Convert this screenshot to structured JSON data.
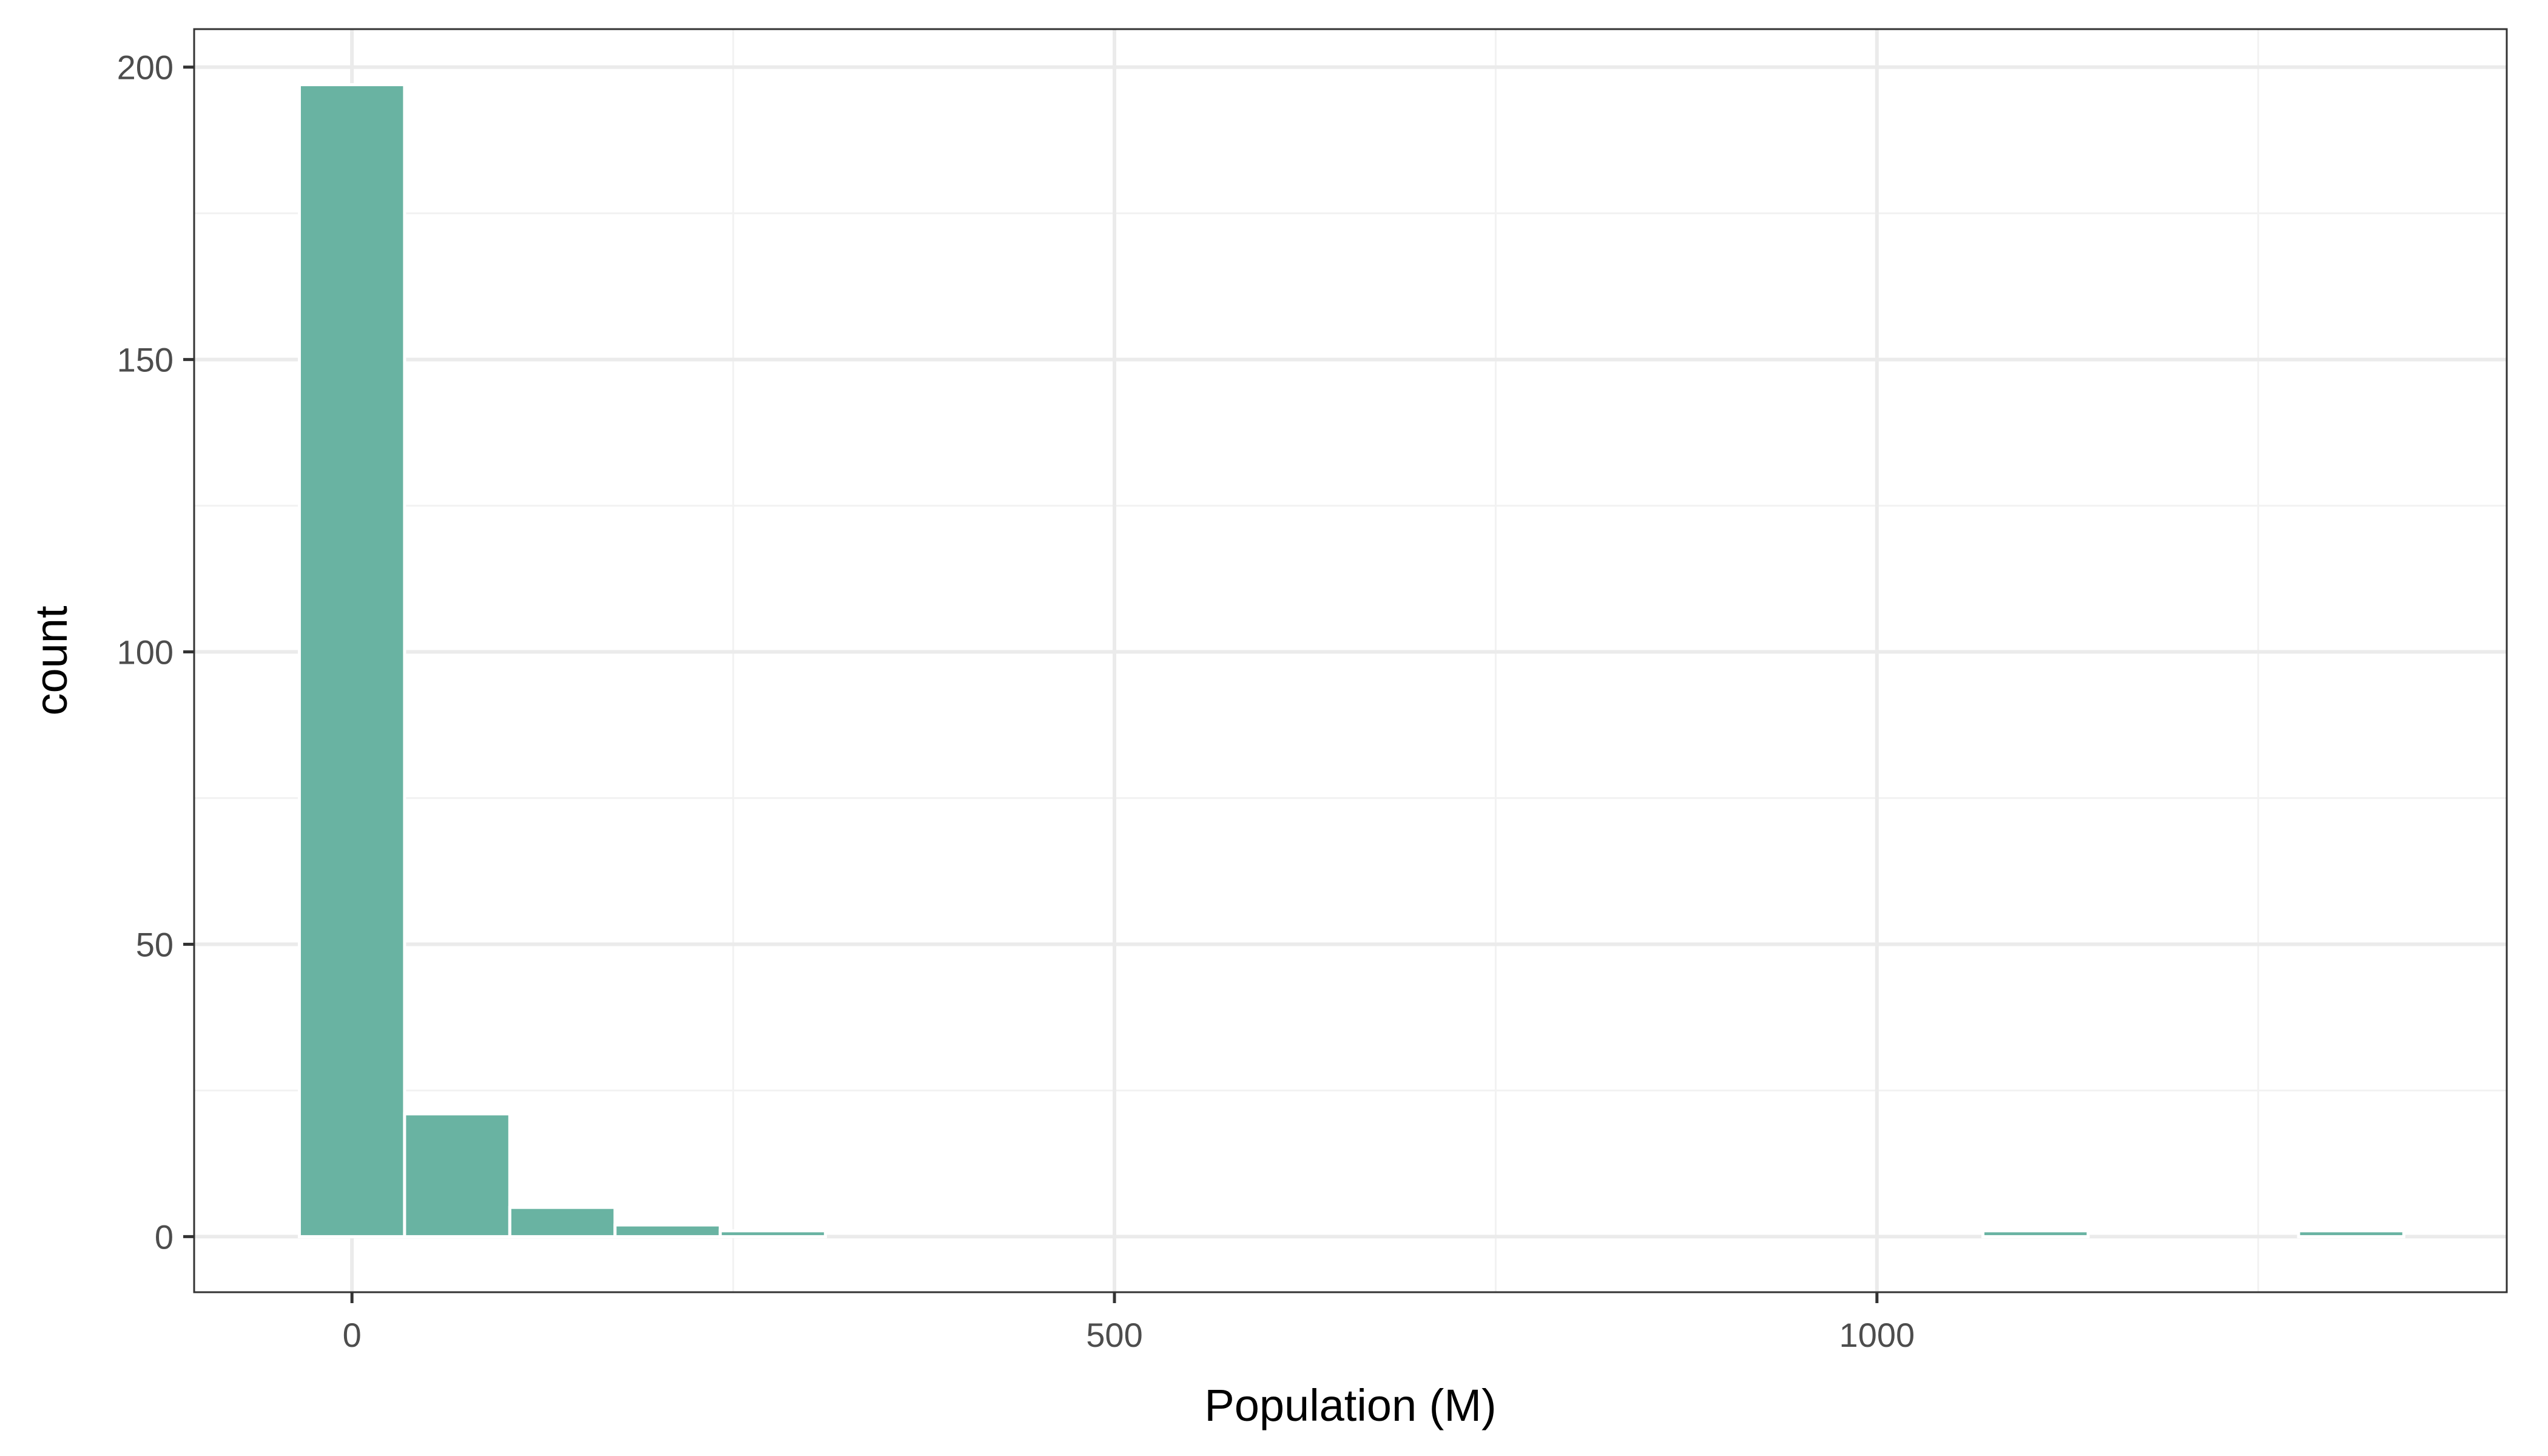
{
  "chart_data": {
    "type": "bar",
    "subtype": "histogram",
    "xlabel": "Population (M)",
    "ylabel": "count",
    "xlim": [
      -103.5,
      1413
    ],
    "ylim": [
      -9.5,
      206.5
    ],
    "x_ticks": [
      {
        "value": 0,
        "label": "0"
      },
      {
        "value": 500,
        "label": "500"
      },
      {
        "value": 1000,
        "label": "1000"
      }
    ],
    "x_minor_ticks": [
      250,
      750,
      1250
    ],
    "y_ticks": [
      {
        "value": 0,
        "label": "0"
      },
      {
        "value": 50,
        "label": "50"
      },
      {
        "value": 100,
        "label": "100"
      },
      {
        "value": 150,
        "label": "150"
      },
      {
        "value": 200,
        "label": "200"
      }
    ],
    "y_minor_ticks": [
      25,
      75,
      125,
      175
    ],
    "bin_width": 69,
    "bins": [
      {
        "x0": -34.5,
        "x1": 34.5,
        "count": 197
      },
      {
        "x0": 34.5,
        "x1": 103.5,
        "count": 21
      },
      {
        "x0": 103.5,
        "x1": 172.5,
        "count": 5
      },
      {
        "x0": 172.5,
        "x1": 241.5,
        "count": 2
      },
      {
        "x0": 241.5,
        "x1": 310.5,
        "count": 1
      },
      {
        "x0": 310.5,
        "x1": 379.5,
        "count": 0
      },
      {
        "x0": 379.5,
        "x1": 448.5,
        "count": 0
      },
      {
        "x0": 448.5,
        "x1": 517.5,
        "count": 0
      },
      {
        "x0": 517.5,
        "x1": 586.5,
        "count": 0
      },
      {
        "x0": 586.5,
        "x1": 655.5,
        "count": 0
      },
      {
        "x0": 655.5,
        "x1": 724.5,
        "count": 0
      },
      {
        "x0": 724.5,
        "x1": 793.5,
        "count": 0
      },
      {
        "x0": 793.5,
        "x1": 862.5,
        "count": 0
      },
      {
        "x0": 862.5,
        "x1": 931.5,
        "count": 0
      },
      {
        "x0": 931.5,
        "x1": 1000.5,
        "count": 0
      },
      {
        "x0": 1000.5,
        "x1": 1069.5,
        "count": 0
      },
      {
        "x0": 1069.5,
        "x1": 1138.5,
        "count": 1
      },
      {
        "x0": 1138.5,
        "x1": 1207.5,
        "count": 0
      },
      {
        "x0": 1207.5,
        "x1": 1276.5,
        "count": 0
      },
      {
        "x0": 1276.5,
        "x1": 1345.5,
        "count": 1
      }
    ],
    "grid": true,
    "legend": "none",
    "colors": {
      "bar_fill": "#69b3a2",
      "bar_stroke": "#ffffff",
      "panel_border": "#333333",
      "grid_major": "#ebebeb",
      "grid_minor": "#f2f2f2",
      "tick_text": "#4d4d4d",
      "title_text": "#000000"
    }
  }
}
